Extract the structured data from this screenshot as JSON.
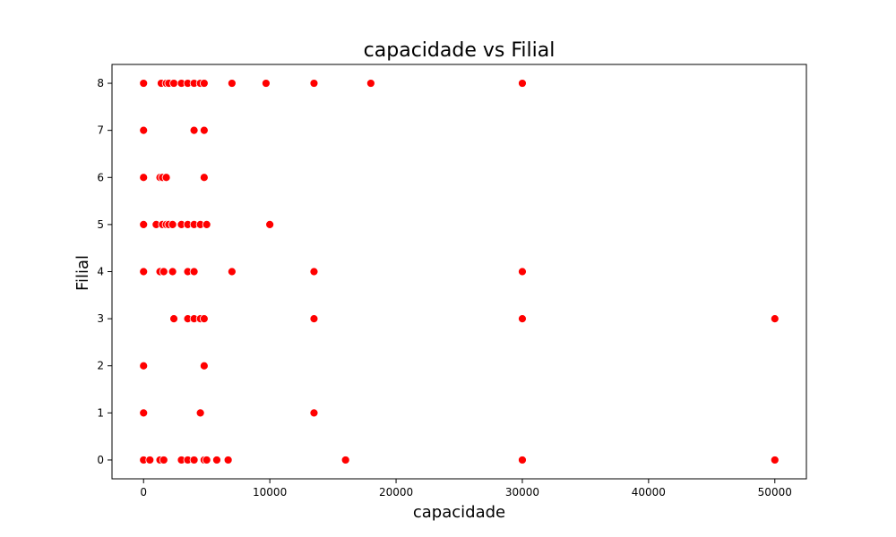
{
  "chart_data": {
    "type": "scatter",
    "title": "capacidade vs Filial",
    "xlabel": "capacidade",
    "ylabel": "Filial",
    "xlim": [
      -2500,
      52500
    ],
    "ylim": [
      -0.4,
      8.4
    ],
    "xticks": [
      0,
      10000,
      20000,
      30000,
      40000,
      50000
    ],
    "yticks": [
      0,
      1,
      2,
      3,
      4,
      5,
      6,
      7,
      8
    ],
    "grid": false,
    "marker_color": "#ff0000",
    "points": [
      {
        "x": 0,
        "y": 8
      },
      {
        "x": 1400,
        "y": 8
      },
      {
        "x": 1800,
        "y": 8
      },
      {
        "x": 2000,
        "y": 8
      },
      {
        "x": 2400,
        "y": 8
      },
      {
        "x": 3000,
        "y": 8
      },
      {
        "x": 3500,
        "y": 8
      },
      {
        "x": 4000,
        "y": 8
      },
      {
        "x": 4500,
        "y": 8
      },
      {
        "x": 4800,
        "y": 8
      },
      {
        "x": 7000,
        "y": 8
      },
      {
        "x": 9700,
        "y": 8
      },
      {
        "x": 13500,
        "y": 8
      },
      {
        "x": 18000,
        "y": 8
      },
      {
        "x": 30000,
        "y": 8
      },
      {
        "x": 0,
        "y": 7
      },
      {
        "x": 4000,
        "y": 7
      },
      {
        "x": 4800,
        "y": 7
      },
      {
        "x": 0,
        "y": 6
      },
      {
        "x": 1300,
        "y": 6
      },
      {
        "x": 1500,
        "y": 6
      },
      {
        "x": 1800,
        "y": 6
      },
      {
        "x": 4800,
        "y": 6
      },
      {
        "x": 0,
        "y": 5
      },
      {
        "x": 1000,
        "y": 5
      },
      {
        "x": 1500,
        "y": 5
      },
      {
        "x": 1800,
        "y": 5
      },
      {
        "x": 2000,
        "y": 5
      },
      {
        "x": 2300,
        "y": 5
      },
      {
        "x": 3000,
        "y": 5
      },
      {
        "x": 3500,
        "y": 5
      },
      {
        "x": 4000,
        "y": 5
      },
      {
        "x": 4500,
        "y": 5
      },
      {
        "x": 5000,
        "y": 5
      },
      {
        "x": 10000,
        "y": 5
      },
      {
        "x": 0,
        "y": 4
      },
      {
        "x": 1300,
        "y": 4
      },
      {
        "x": 1600,
        "y": 4
      },
      {
        "x": 2300,
        "y": 4
      },
      {
        "x": 3500,
        "y": 4
      },
      {
        "x": 4000,
        "y": 4
      },
      {
        "x": 7000,
        "y": 4
      },
      {
        "x": 13500,
        "y": 4
      },
      {
        "x": 30000,
        "y": 4
      },
      {
        "x": 2400,
        "y": 3
      },
      {
        "x": 3500,
        "y": 3
      },
      {
        "x": 4000,
        "y": 3
      },
      {
        "x": 4500,
        "y": 3
      },
      {
        "x": 4800,
        "y": 3
      },
      {
        "x": 13500,
        "y": 3
      },
      {
        "x": 30000,
        "y": 3
      },
      {
        "x": 50000,
        "y": 3
      },
      {
        "x": 0,
        "y": 2
      },
      {
        "x": 4800,
        "y": 2
      },
      {
        "x": 0,
        "y": 1
      },
      {
        "x": 4500,
        "y": 1
      },
      {
        "x": 13500,
        "y": 1
      },
      {
        "x": 0,
        "y": 0
      },
      {
        "x": 500,
        "y": 0
      },
      {
        "x": 1300,
        "y": 0
      },
      {
        "x": 1600,
        "y": 0
      },
      {
        "x": 3000,
        "y": 0
      },
      {
        "x": 3500,
        "y": 0
      },
      {
        "x": 4000,
        "y": 0
      },
      {
        "x": 4800,
        "y": 0
      },
      {
        "x": 5000,
        "y": 0
      },
      {
        "x": 5800,
        "y": 0
      },
      {
        "x": 6700,
        "y": 0
      },
      {
        "x": 16000,
        "y": 0
      },
      {
        "x": 30000,
        "y": 0
      },
      {
        "x": 50000,
        "y": 0
      }
    ]
  }
}
